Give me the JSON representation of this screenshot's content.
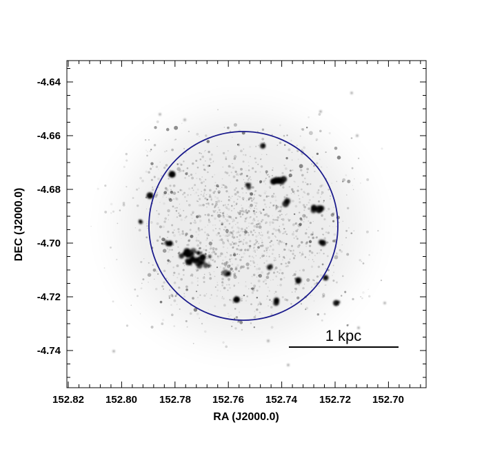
{
  "figure": {
    "xlabel": "RA (J2000.0)",
    "ylabel": "DEC (J2000.0)",
    "x_ticks": [
      "152.82",
      "152.80",
      "152.78",
      "152.76",
      "152.74",
      "152.72",
      "152.70"
    ],
    "y_ticks": [
      "-4.64",
      "-4.66",
      "-4.68",
      "-4.70",
      "-4.72",
      "-4.74"
    ],
    "scale_bar_label": "1 kpc",
    "circle_color": "#1a1a8c",
    "image_colormap": "inverted grayscale"
  }
}
